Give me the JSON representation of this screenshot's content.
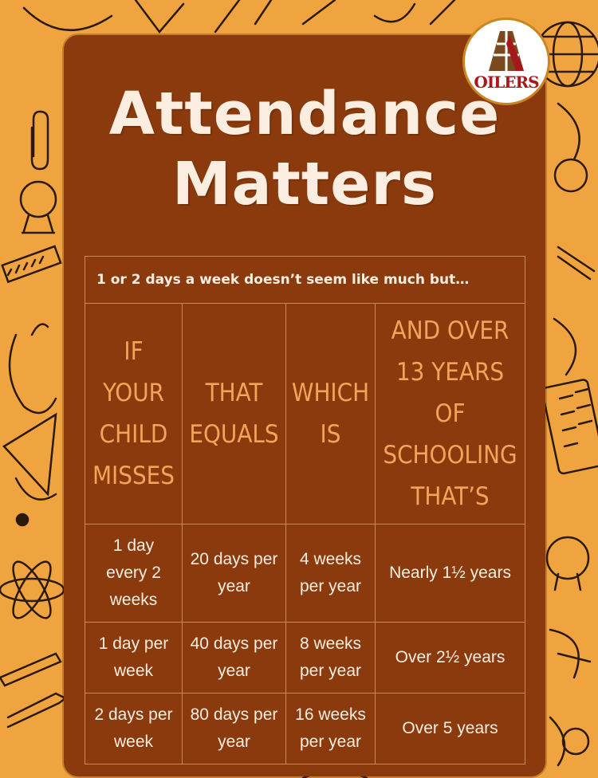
{
  "title": {
    "line1": "Attendance",
    "line2": "Matters"
  },
  "logo": {
    "text": "OILERS",
    "colors": {
      "brown": "#7a4a1e",
      "red": "#a5181c",
      "gold": "#c9851f"
    }
  },
  "table": {
    "intro": "1 or 2 days a week doesn’t seem like much but…",
    "headers": [
      [
        "IF",
        "YOUR",
        "CHILD",
        "MISSES"
      ],
      [
        "THAT",
        "EQUALS"
      ],
      [
        "WHICH",
        "IS"
      ],
      [
        "AND OVER",
        "13 YEARS",
        "OF",
        "SCHOOLING",
        "THAT’S"
      ]
    ],
    "rows": [
      [
        [
          "1 day",
          "every 2",
          "weeks"
        ],
        [
          "20 days per",
          "year"
        ],
        [
          "4 weeks",
          "per year"
        ],
        [
          "Nearly 1½ years"
        ]
      ],
      [
        [
          "1 day per",
          "week"
        ],
        [
          "40 days per",
          "year"
        ],
        [
          "8 weeks",
          "per year"
        ],
        [
          "Over 2½ years"
        ]
      ],
      [
        [
          "2 days per",
          "week"
        ],
        [
          "80 days per",
          "year"
        ],
        [
          "16 weeks",
          "per year"
        ],
        [
          "Over 5 years"
        ]
      ]
    ]
  },
  "colors": {
    "background": "#efa43f",
    "panel": "#8a3a0c",
    "header_text": "#f4a35a",
    "body_text": "#fbeee0"
  }
}
